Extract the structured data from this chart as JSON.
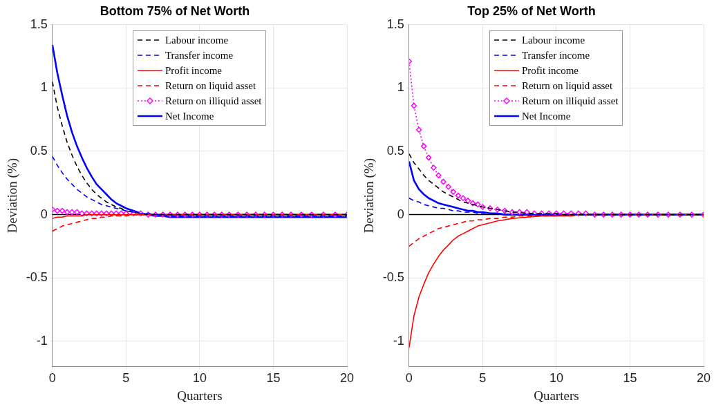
{
  "chart_data": [
    {
      "type": "line",
      "title": "Bottom 75% of Net Worth",
      "xlabel": "Quarters",
      "ylabel": "Deviation (%)",
      "xlim": [
        0,
        20
      ],
      "ylim": [
        -1.2,
        1.5
      ],
      "xticks": [
        0,
        5,
        10,
        15,
        20
      ],
      "yticks": [
        -1,
        -0.5,
        0,
        0.5,
        1,
        1.5
      ],
      "grid": true,
      "legend": "top",
      "x": [
        0,
        0.33,
        0.67,
        1,
        1.33,
        1.67,
        2,
        2.33,
        2.67,
        3,
        3.33,
        3.67,
        4,
        4.33,
        4.67,
        5,
        5.5,
        6,
        6.5,
        7,
        7.5,
        8,
        8.5,
        9,
        9.5,
        10,
        10.5,
        11,
        11.5,
        12,
        12.6,
        13.2,
        13.8,
        14.4,
        15,
        15.6,
        16.2,
        16.9,
        17.6,
        18.4,
        19.2,
        20
      ],
      "ref_lines": [
        {
          "axis": "y",
          "value": 0,
          "color": "#000000"
        }
      ],
      "series": [
        {
          "name": "Labour income",
          "color": "#000000",
          "line_style": "dashed",
          "values": [
            1.05,
            0.85,
            0.7,
            0.57,
            0.47,
            0.38,
            0.31,
            0.25,
            0.2,
            0.16,
            0.13,
            0.1,
            0.08,
            0.06,
            0.05,
            0.03,
            0.02,
            0.01,
            0,
            0,
            0,
            0,
            0,
            0,
            0,
            0,
            0,
            0,
            0,
            0,
            0,
            0,
            0,
            0,
            0,
            0,
            0,
            0,
            0,
            0,
            0,
            0
          ]
        },
        {
          "name": "Transfer income",
          "color": "#0000ff",
          "line_style": "dashed",
          "values": [
            0.46,
            0.39,
            0.33,
            0.28,
            0.24,
            0.2,
            0.17,
            0.14,
            0.12,
            0.1,
            0.08,
            0.07,
            0.06,
            0.05,
            0.04,
            0.03,
            0.02,
            0.01,
            0.01,
            0,
            0,
            -0.01,
            -0.01,
            -0.01,
            -0.01,
            -0.01,
            -0.01,
            -0.01,
            -0.01,
            -0.01,
            -0.01,
            -0.01,
            -0.01,
            -0.01,
            -0.01,
            -0.01,
            -0.01,
            -0.01,
            -0.01,
            -0.01,
            -0.01,
            -0.01
          ]
        },
        {
          "name": "Profit income",
          "color": "#ff0000",
          "line_style": "solid",
          "values": [
            -0.03,
            -0.02,
            -0.02,
            -0.01,
            -0.01,
            -0.01,
            -0.01,
            0,
            0,
            0,
            0,
            0,
            0,
            0,
            0,
            0,
            0,
            0,
            0,
            0,
            0,
            0,
            0,
            0,
            0,
            0,
            0,
            0,
            0,
            0,
            0,
            0,
            0,
            0,
            0,
            0,
            0,
            0,
            0,
            0,
            0,
            0
          ]
        },
        {
          "name": "Return on liquid asset",
          "color": "#ff0000",
          "line_style": "dashed",
          "values": [
            -0.13,
            -0.11,
            -0.09,
            -0.08,
            -0.07,
            -0.06,
            -0.05,
            -0.04,
            -0.03,
            -0.03,
            -0.02,
            -0.02,
            -0.01,
            -0.01,
            -0.01,
            -0.01,
            0,
            0,
            0,
            0,
            0,
            0,
            0,
            0,
            0,
            0,
            0,
            0,
            0,
            0,
            0,
            0,
            0,
            0,
            0,
            0,
            0,
            0,
            0,
            0,
            0,
            0
          ]
        },
        {
          "name": "Return on illiquid asset",
          "color": "#ff00ff",
          "line_style": "dotted",
          "marker": "diamond",
          "values": [
            0.04,
            0.03,
            0.03,
            0.02,
            0.02,
            0.02,
            0.01,
            0.01,
            0.01,
            0.01,
            0.01,
            0.01,
            0.01,
            0.01,
            0.01,
            0.01,
            0.01,
            0.01,
            0,
            0,
            0,
            0,
            0,
            0,
            0,
            0,
            0,
            0,
            0,
            0,
            0,
            0,
            0,
            0,
            0,
            0,
            0,
            0,
            0,
            0,
            0,
            0
          ]
        },
        {
          "name": "Net Income",
          "color": "#0000ff",
          "line_style": "solid",
          "values": [
            1.34,
            1.12,
            0.94,
            0.78,
            0.65,
            0.54,
            0.45,
            0.37,
            0.3,
            0.24,
            0.2,
            0.16,
            0.12,
            0.09,
            0.07,
            0.05,
            0.03,
            0.01,
            0,
            -0.01,
            -0.01,
            -0.02,
            -0.02,
            -0.02,
            -0.02,
            -0.02,
            -0.02,
            -0.02,
            -0.02,
            -0.02,
            -0.02,
            -0.02,
            -0.02,
            -0.02,
            -0.02,
            -0.02,
            -0.02,
            -0.02,
            -0.02,
            -0.02,
            -0.02,
            -0.02
          ]
        }
      ]
    },
    {
      "type": "line",
      "title": "Top 25% of Net Worth",
      "xlabel": "Quarters",
      "ylabel": "Deviation (%)",
      "xlim": [
        0,
        20
      ],
      "ylim": [
        -1.2,
        1.5
      ],
      "xticks": [
        0,
        5,
        10,
        15,
        20
      ],
      "yticks": [
        -1,
        -0.5,
        0,
        0.5,
        1,
        1.5
      ],
      "grid": true,
      "legend": "top",
      "x": [
        0,
        0.33,
        0.67,
        1,
        1.33,
        1.67,
        2,
        2.33,
        2.67,
        3,
        3.33,
        3.67,
        4,
        4.33,
        4.67,
        5,
        5.5,
        6,
        6.5,
        7,
        7.5,
        8,
        8.5,
        9,
        9.5,
        10,
        10.5,
        11,
        11.5,
        12,
        12.6,
        13.2,
        13.8,
        14.4,
        15,
        15.6,
        16.2,
        16.9,
        17.6,
        18.4,
        19.2,
        20
      ],
      "ref_lines": [
        {
          "axis": "y",
          "value": 0,
          "color": "#000000"
        }
      ],
      "series": [
        {
          "name": "Labour income",
          "color": "#000000",
          "line_style": "dashed",
          "values": [
            0.48,
            0.41,
            0.36,
            0.31,
            0.27,
            0.24,
            0.21,
            0.18,
            0.16,
            0.14,
            0.12,
            0.1,
            0.09,
            0.08,
            0.07,
            0.06,
            0.05,
            0.04,
            0.03,
            0.02,
            0.02,
            0.01,
            0.01,
            0.01,
            0.01,
            0.01,
            0,
            0,
            0,
            0,
            0,
            0,
            0,
            0,
            0,
            0,
            0,
            0,
            0,
            0,
            0,
            0
          ]
        },
        {
          "name": "Transfer income",
          "color": "#0000ff",
          "line_style": "dashed",
          "values": [
            0.13,
            0.11,
            0.1,
            0.08,
            0.07,
            0.06,
            0.05,
            0.05,
            0.04,
            0.03,
            0.03,
            0.02,
            0.02,
            0.02,
            0.01,
            0.01,
            0.01,
            0.01,
            0,
            0,
            0,
            0,
            0,
            0,
            0,
            0,
            0,
            0,
            0,
            0,
            0,
            0,
            0,
            0,
            0,
            0,
            0,
            0,
            0,
            0,
            0,
            0
          ]
        },
        {
          "name": "Profit income",
          "color": "#ff0000",
          "line_style": "solid",
          "values": [
            -1.05,
            -0.8,
            -0.65,
            -0.55,
            -0.46,
            -0.39,
            -0.33,
            -0.28,
            -0.24,
            -0.2,
            -0.17,
            -0.15,
            -0.13,
            -0.11,
            -0.09,
            -0.08,
            -0.065,
            -0.05,
            -0.04,
            -0.03,
            -0.025,
            -0.02,
            -0.015,
            -0.01,
            -0.01,
            -0.01,
            -0.01,
            -0.01,
            0,
            0,
            0,
            0,
            0,
            0,
            0,
            0,
            0,
            0,
            0,
            0,
            0,
            0
          ]
        },
        {
          "name": "Return on liquid asset",
          "color": "#ff0000",
          "line_style": "dashed",
          "values": [
            -0.25,
            -0.22,
            -0.19,
            -0.17,
            -0.15,
            -0.13,
            -0.11,
            -0.1,
            -0.09,
            -0.08,
            -0.07,
            -0.06,
            -0.05,
            -0.05,
            -0.04,
            -0.04,
            -0.03,
            -0.03,
            -0.02,
            -0.02,
            -0.01,
            -0.01,
            -0.01,
            -0.01,
            -0.01,
            -0.01,
            0,
            0,
            0,
            0,
            0,
            0,
            0,
            0,
            0,
            0,
            0,
            0,
            0,
            0,
            0,
            0
          ]
        },
        {
          "name": "Return on illiquid asset",
          "color": "#ff00ff",
          "line_style": "dotted",
          "marker": "diamond",
          "values": [
            1.21,
            0.86,
            0.67,
            0.54,
            0.45,
            0.37,
            0.31,
            0.26,
            0.22,
            0.18,
            0.15,
            0.13,
            0.11,
            0.09,
            0.08,
            0.06,
            0.05,
            0.04,
            0.03,
            0.02,
            0.02,
            0.02,
            0.01,
            0.01,
            0.01,
            0.01,
            0.01,
            0.01,
            0.01,
            0.01,
            0,
            0,
            0,
            0,
            0,
            0,
            0,
            0,
            0,
            0,
            0,
            0
          ]
        },
        {
          "name": "Net Income",
          "color": "#0000ff",
          "line_style": "solid",
          "values": [
            0.42,
            0.27,
            0.2,
            0.16,
            0.13,
            0.11,
            0.09,
            0.08,
            0.07,
            0.06,
            0.05,
            0.04,
            0.03,
            0.03,
            0.02,
            0.02,
            0.01,
            0.01,
            0,
            0,
            0,
            0,
            0,
            0,
            0,
            0,
            0,
            0,
            0,
            0,
            0,
            0,
            0,
            0,
            0,
            0,
            0,
            0,
            0,
            0,
            0,
            0
          ]
        }
      ]
    }
  ]
}
